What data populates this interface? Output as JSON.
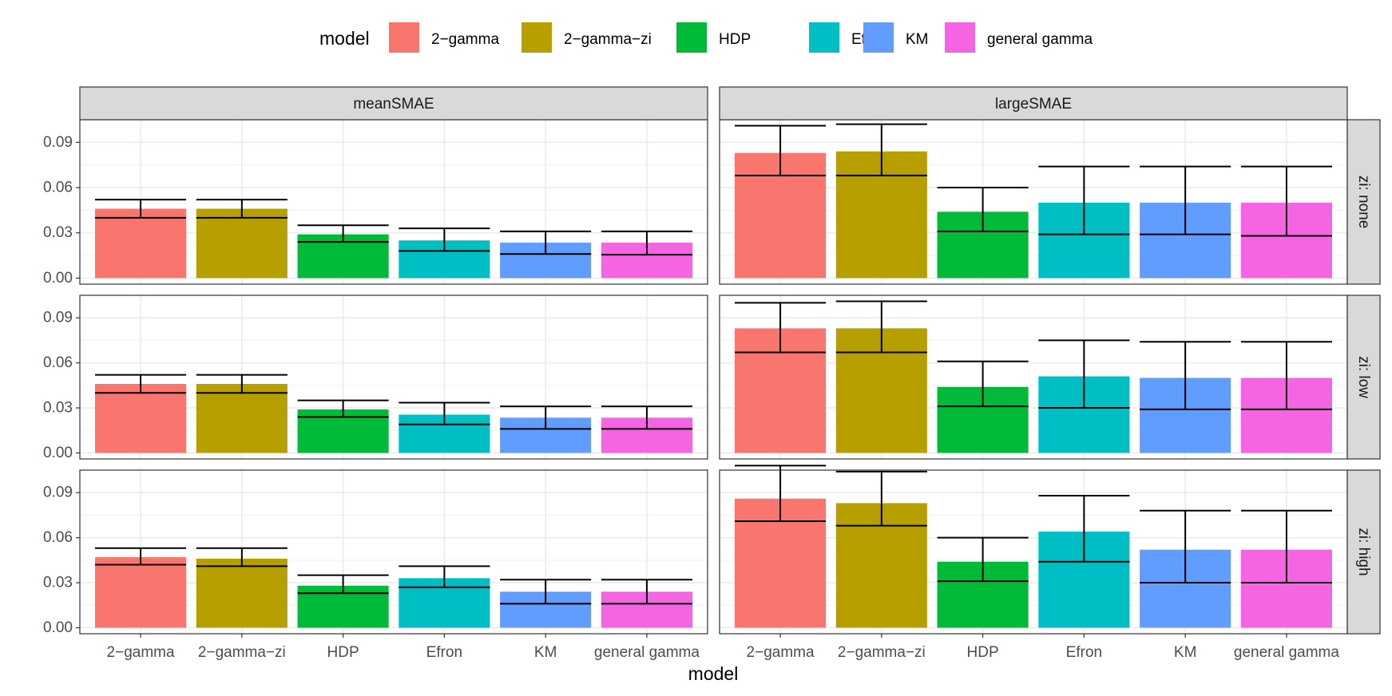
{
  "chart_data": {
    "type": "bar",
    "title": "",
    "xlabel": "model",
    "ylabel": "",
    "legend_title": "model",
    "legend_position": "top",
    "categories": [
      "2−gamma",
      "2−gamma−zi",
      "HDP",
      "Efron",
      "KM",
      "general gamma"
    ],
    "colors": [
      "#F8766D",
      "#B79F00",
      "#00BA38",
      "#00BFC4",
      "#619CFF",
      "#F564E3"
    ],
    "ylim": [
      -0.004,
      0.105
    ],
    "yticks": [
      0.0,
      0.03,
      0.06,
      0.09
    ],
    "ytick_labels": [
      "0.00",
      "0.03",
      "0.06",
      "0.09"
    ],
    "col_facets": [
      "meanSMAE",
      "largeSMAE"
    ],
    "row_facets": [
      "zi: none",
      "zi: low",
      "zi: high"
    ],
    "panels": [
      {
        "row": "zi: none",
        "col": "meanSMAE",
        "values": [
          0.046,
          0.046,
          0.029,
          0.025,
          0.0235,
          0.0235
        ],
        "lower": [
          0.04,
          0.04,
          0.024,
          0.018,
          0.016,
          0.0155
        ],
        "upper": [
          0.052,
          0.052,
          0.035,
          0.033,
          0.031,
          0.031
        ]
      },
      {
        "row": "zi: none",
        "col": "largeSMAE",
        "values": [
          0.083,
          0.084,
          0.044,
          0.05,
          0.05,
          0.05
        ],
        "lower": [
          0.068,
          0.068,
          0.031,
          0.029,
          0.029,
          0.028
        ],
        "upper": [
          0.101,
          0.102,
          0.06,
          0.074,
          0.074,
          0.074
        ]
      },
      {
        "row": "zi: low",
        "col": "meanSMAE",
        "values": [
          0.046,
          0.046,
          0.029,
          0.0255,
          0.0235,
          0.0235
        ],
        "lower": [
          0.04,
          0.04,
          0.024,
          0.019,
          0.016,
          0.016
        ],
        "upper": [
          0.052,
          0.052,
          0.035,
          0.0335,
          0.031,
          0.031
        ]
      },
      {
        "row": "zi: low",
        "col": "largeSMAE",
        "values": [
          0.083,
          0.083,
          0.044,
          0.051,
          0.05,
          0.05
        ],
        "lower": [
          0.067,
          0.067,
          0.031,
          0.03,
          0.029,
          0.029
        ],
        "upper": [
          0.1,
          0.101,
          0.061,
          0.075,
          0.074,
          0.074
        ]
      },
      {
        "row": "zi: high",
        "col": "meanSMAE",
        "values": [
          0.047,
          0.046,
          0.028,
          0.033,
          0.024,
          0.024
        ],
        "lower": [
          0.042,
          0.041,
          0.023,
          0.027,
          0.016,
          0.016
        ],
        "upper": [
          0.053,
          0.053,
          0.035,
          0.041,
          0.032,
          0.032
        ]
      },
      {
        "row": "zi: high",
        "col": "largeSMAE",
        "values": [
          0.086,
          0.083,
          0.044,
          0.064,
          0.052,
          0.052
        ],
        "lower": [
          0.071,
          0.068,
          0.031,
          0.044,
          0.03,
          0.03
        ],
        "upper": [
          0.108,
          0.104,
          0.06,
          0.088,
          0.078,
          0.078
        ]
      }
    ]
  }
}
